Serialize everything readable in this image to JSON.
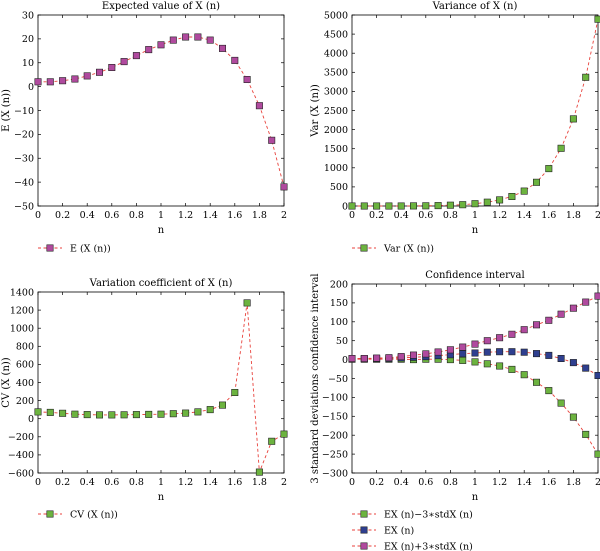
{
  "chart_data": [
    {
      "type": "line",
      "title": "Expected value of X (n)",
      "xlabel": "n",
      "ylabel": "E (X (n))",
      "xlim": [
        0,
        2
      ],
      "ylim": [
        -50,
        30
      ],
      "xticks": [
        "0",
        "0.2",
        "0.4",
        "0.6",
        "0.8",
        "1",
        "1.2",
        "1.4",
        "1.6",
        "1.8",
        "2"
      ],
      "yticks": [
        "−50",
        "−40",
        "−30",
        "−20",
        "−10",
        "0",
        "10",
        "20",
        "30"
      ],
      "legend_position": "below",
      "x": [
        0,
        0.1,
        0.2,
        0.3,
        0.4,
        0.5,
        0.6,
        0.7,
        0.8,
        0.9,
        1.0,
        1.1,
        1.2,
        1.3,
        1.4,
        1.5,
        1.6,
        1.7,
        1.8,
        1.9,
        2.0
      ],
      "series": [
        {
          "name": "E (X (n))",
          "color": "#b04a9e",
          "values": [
            2,
            2,
            2.5,
            3.2,
            4.5,
            6,
            8,
            10.5,
            13,
            15.5,
            17.5,
            19.5,
            20.8,
            20.8,
            19.5,
            16,
            11,
            3,
            -8,
            -22.5,
            -42
          ]
        }
      ]
    },
    {
      "type": "line",
      "title": "Variance of X (n)",
      "xlabel": "n",
      "ylabel": "Var (X (n))",
      "xlim": [
        0,
        2
      ],
      "ylim": [
        0,
        5000
      ],
      "xticks": [
        "0",
        "0.2",
        "0.4",
        "0.6",
        "0.8",
        "1",
        "1.2",
        "1.4",
        "1.6",
        "1.8",
        "2"
      ],
      "yticks": [
        "0",
        "500",
        "1000",
        "1500",
        "2000",
        "2500",
        "3000",
        "3500",
        "4000",
        "4500",
        "5000"
      ],
      "legend_position": "below",
      "x": [
        0,
        0.1,
        0.2,
        0.3,
        0.4,
        0.5,
        0.6,
        0.7,
        0.8,
        0.9,
        1.0,
        1.1,
        1.2,
        1.3,
        1.4,
        1.5,
        1.6,
        1.7,
        1.8,
        1.9,
        2.0
      ],
      "series": [
        {
          "name": "Var (X (n))",
          "color": "#6cb33f",
          "values": [
            0,
            0,
            0,
            0,
            1,
            2,
            5,
            10,
            20,
            35,
            60,
            100,
            160,
            250,
            390,
            620,
            980,
            1510,
            2280,
            3370,
            4890
          ]
        }
      ]
    },
    {
      "type": "line",
      "title": "Variation coefficient of X (n)",
      "xlabel": "n",
      "ylabel": "CV (X (n))",
      "xlim": [
        0,
        2
      ],
      "ylim": [
        -600,
        1400
      ],
      "xticks": [
        "0",
        "0.2",
        "0.4",
        "0.6",
        "0.8",
        "1",
        "1.2",
        "1.4",
        "1.6",
        "1.8",
        "2"
      ],
      "yticks": [
        "−600",
        "−400",
        "−200",
        "0",
        "200",
        "400",
        "600",
        "800",
        "1000",
        "1200",
        "1400"
      ],
      "legend_position": "below",
      "x": [
        0,
        0.1,
        0.2,
        0.3,
        0.4,
        0.5,
        0.6,
        0.7,
        0.8,
        0.9,
        1.0,
        1.1,
        1.2,
        1.3,
        1.4,
        1.5,
        1.6,
        1.7,
        1.8,
        1.9,
        2.0
      ],
      "series": [
        {
          "name": "CV (X (n))",
          "color": "#6cb33f",
          "values": [
            75,
            70,
            60,
            50,
            45,
            42,
            42,
            43,
            45,
            47,
            50,
            55,
            62,
            75,
            100,
            150,
            290,
            1280,
            -590,
            -250,
            -170
          ]
        }
      ]
    },
    {
      "type": "line",
      "title": "Confidence interval",
      "xlabel": "n",
      "ylabel": "3 standard deviations confidence interval",
      "xlim": [
        0,
        2
      ],
      "ylim": [
        -300,
        200
      ],
      "xticks": [
        "0",
        "0.2",
        "0.4",
        "0.6",
        "0.8",
        "1",
        "1.2",
        "1.4",
        "1.6",
        "1.8",
        "2"
      ],
      "yticks": [
        "−300",
        "−250",
        "−200",
        "−150",
        "−100",
        "−50",
        "0",
        "50",
        "100",
        "150",
        "200"
      ],
      "legend_position": "below",
      "x": [
        0,
        0.1,
        0.2,
        0.3,
        0.4,
        0.5,
        0.6,
        0.7,
        0.8,
        0.9,
        1.0,
        1.1,
        1.2,
        1.3,
        1.4,
        1.5,
        1.6,
        1.7,
        1.8,
        1.9,
        2.0
      ],
      "series": [
        {
          "name": "EX (n)−3∗stdX (n)",
          "color": "#6cb33f",
          "values": [
            1,
            1,
            1,
            1,
            1,
            0,
            1,
            1,
            0,
            -2,
            -6,
            -11,
            -17,
            -26,
            -40,
            -60,
            -82,
            -115,
            -152,
            -198,
            -250
          ]
        },
        {
          "name": "EX (n)",
          "color": "#2f3f8f",
          "values": [
            2,
            2,
            2.5,
            3.2,
            4.5,
            6,
            8,
            10.5,
            13,
            15.5,
            17.5,
            19.5,
            20.8,
            20.8,
            19.5,
            16,
            11,
            3,
            -8,
            -22.5,
            -42
          ]
        },
        {
          "name": "EX (n)+3∗stdX (n)",
          "color": "#b04a9e",
          "values": [
            3,
            3,
            4,
            5,
            8,
            12,
            15,
            20,
            26,
            33,
            41,
            50,
            58,
            67,
            79,
            92,
            104,
            120,
            136,
            152,
            168
          ]
        }
      ]
    }
  ]
}
